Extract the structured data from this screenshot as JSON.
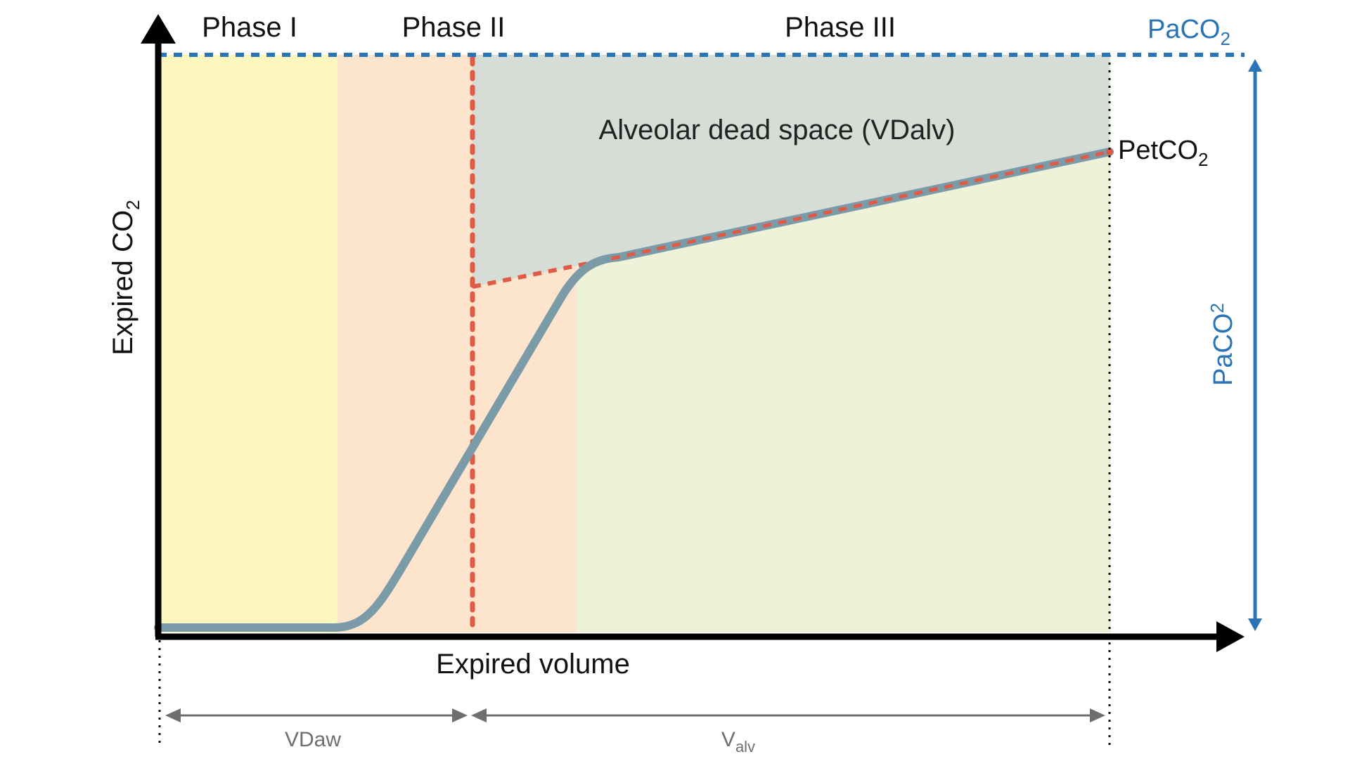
{
  "diagram": {
    "phases": [
      {
        "name": "phase-1",
        "label": "Phase I"
      },
      {
        "name": "phase-2",
        "label": "Phase II"
      },
      {
        "name": "phase-3",
        "label": "Phase III"
      }
    ],
    "y_axis": {
      "label_main": "Expired CO",
      "label_sub": "2"
    },
    "x_axis": {
      "label": "Expired volume"
    },
    "region_label": "Alveolar dead space (VDalv)",
    "petco2": {
      "main": "PetCO",
      "sub": "2"
    },
    "paco2_top": {
      "main": "PaCO",
      "sub": "2"
    },
    "paco2_side": {
      "main": "PaCO",
      "sub": "2"
    },
    "dimensions": {
      "vdaw": "VDaw",
      "valv_main": "V",
      "valv_sub": "alv"
    },
    "colors": {
      "phase1_fill": "#fbf7be",
      "phase2_fill": "#fce5cc",
      "phase3_fill": "#eef2d8",
      "dead_space_fill": "#d6dcd6",
      "curve": "#7b9ba8",
      "dotted_red": "#e05a45",
      "paco2_blue": "#2a74b5",
      "axis": "#000000",
      "dim_gray": "#6e6e6e"
    }
  }
}
